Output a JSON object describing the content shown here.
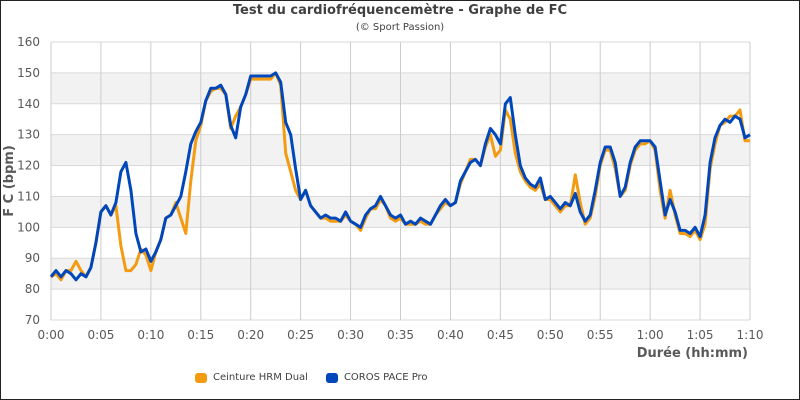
{
  "chart_data": {
    "type": "line",
    "title": "Test du cardiofréquencemètre - Graphe de FC",
    "subtitle": "(© Sport Passion)",
    "xlabel": "Durée (hh:mm)",
    "ylabel": "F C (bpm)",
    "ylim": [
      70,
      160
    ],
    "yticks": [
      "70",
      "80",
      "90",
      "100",
      "110",
      "120",
      "130",
      "140",
      "150",
      "160"
    ],
    "xlim_minutes": [
      0,
      70
    ],
    "xticks": [
      "0:00",
      "0:05",
      "0:10",
      "0:15",
      "0:20",
      "0:25",
      "0:30",
      "0:35",
      "0:40",
      "0:45",
      "0:50",
      "0:55",
      "1:00",
      "1:05",
      "1:10"
    ],
    "x_start_minutes": 0,
    "x_step_minutes": 0.5,
    "grid": "horizontal and vertical, alternating grey bands",
    "legend_position": "bottom",
    "series": [
      {
        "name": "Ceinture HRM Dual",
        "color": "#F39C12",
        "values": [
          84,
          85,
          83,
          86,
          86,
          89,
          86,
          84,
          87,
          95,
          105,
          107,
          104,
          107,
          94,
          86,
          86,
          88,
          93,
          91,
          86,
          92,
          96,
          103,
          104,
          108,
          103,
          98,
          115,
          128,
          133,
          141,
          144,
          145,
          145,
          143,
          132,
          136,
          139,
          143,
          148,
          148,
          148,
          148,
          148,
          150,
          146,
          124,
          118,
          112,
          109,
          112,
          107,
          105,
          103,
          103,
          102,
          102,
          102,
          104,
          102,
          101,
          99,
          103,
          106,
          106,
          109,
          107,
          103,
          102,
          103,
          101,
          101,
          101,
          102,
          101,
          101,
          104,
          106,
          108,
          107,
          108,
          114,
          118,
          122,
          122,
          120,
          126,
          130,
          123,
          125,
          138,
          135,
          124,
          118,
          115,
          113,
          112,
          114,
          109,
          109,
          107,
          105,
          107,
          107,
          117,
          108,
          101,
          103,
          110,
          120,
          125,
          125,
          119,
          110,
          112,
          120,
          125,
          127,
          127,
          128,
          125,
          112,
          103,
          112,
          104,
          98,
          98,
          97,
          99,
          96,
          101,
          119,
          127,
          133,
          134,
          136,
          136,
          138,
          128,
          128
        ]
      },
      {
        "name": "COROS PACE Pro",
        "color": "#0047BB",
        "values": [
          84,
          86,
          84,
          86,
          85,
          83,
          85,
          84,
          87,
          95,
          105,
          107,
          104,
          108,
          118,
          121,
          112,
          98,
          92,
          93,
          89,
          92,
          96,
          103,
          104,
          107,
          110,
          118,
          127,
          131,
          134,
          141,
          145,
          145,
          146,
          143,
          133,
          129,
          139,
          143,
          149,
          149,
          149,
          149,
          149,
          150,
          147,
          134,
          130,
          119,
          109,
          112,
          107,
          105,
          103,
          104,
          103,
          103,
          102,
          105,
          102,
          101,
          100,
          104,
          106,
          107,
          110,
          107,
          104,
          103,
          104,
          101,
          102,
          101,
          103,
          102,
          101,
          104,
          107,
          109,
          107,
          108,
          115,
          118,
          121,
          122,
          120,
          127,
          132,
          130,
          127,
          140,
          142,
          130,
          120,
          116,
          114,
          113,
          116,
          109,
          110,
          108,
          106,
          108,
          107,
          111,
          105,
          102,
          104,
          112,
          121,
          126,
          126,
          121,
          110,
          113,
          121,
          126,
          128,
          128,
          128,
          126,
          115,
          104,
          109,
          105,
          99,
          99,
          98,
          100,
          97,
          104,
          121,
          129,
          133,
          135,
          134,
          136,
          135,
          129,
          130
        ]
      }
    ]
  }
}
